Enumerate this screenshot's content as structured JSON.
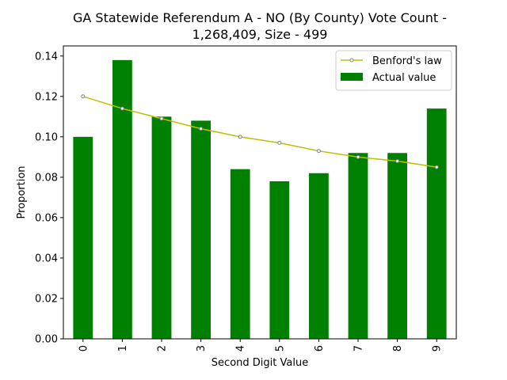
{
  "chart_data": {
    "type": "bar",
    "title_line1": "GA Statewide Referendum A - NO (By County) Vote Count -",
    "title_line2": "1,268,409, Size - 499",
    "xlabel": "Second Digit Value",
    "ylabel": "Proportion",
    "categories": [
      "0",
      "1",
      "2",
      "3",
      "4",
      "5",
      "6",
      "7",
      "8",
      "9"
    ],
    "ylim": [
      0,
      0.145
    ],
    "yticks": [
      "0.00",
      "0.02",
      "0.04",
      "0.06",
      "0.08",
      "0.10",
      "0.12",
      "0.14"
    ],
    "ytick_values": [
      0,
      0.02,
      0.04,
      0.06,
      0.08,
      0.1,
      0.12,
      0.14
    ],
    "legend_position": "top-right",
    "series": [
      {
        "name": "Benford's law",
        "kind": "line",
        "color": "#bfbf00",
        "values": [
          0.12,
          0.114,
          0.109,
          0.104,
          0.1,
          0.097,
          0.093,
          0.09,
          0.088,
          0.085
        ]
      },
      {
        "name": "Actual value",
        "kind": "bar",
        "color": "#008000",
        "values": [
          0.1,
          0.138,
          0.11,
          0.108,
          0.084,
          0.078,
          0.082,
          0.092,
          0.092,
          0.114
        ]
      }
    ]
  }
}
